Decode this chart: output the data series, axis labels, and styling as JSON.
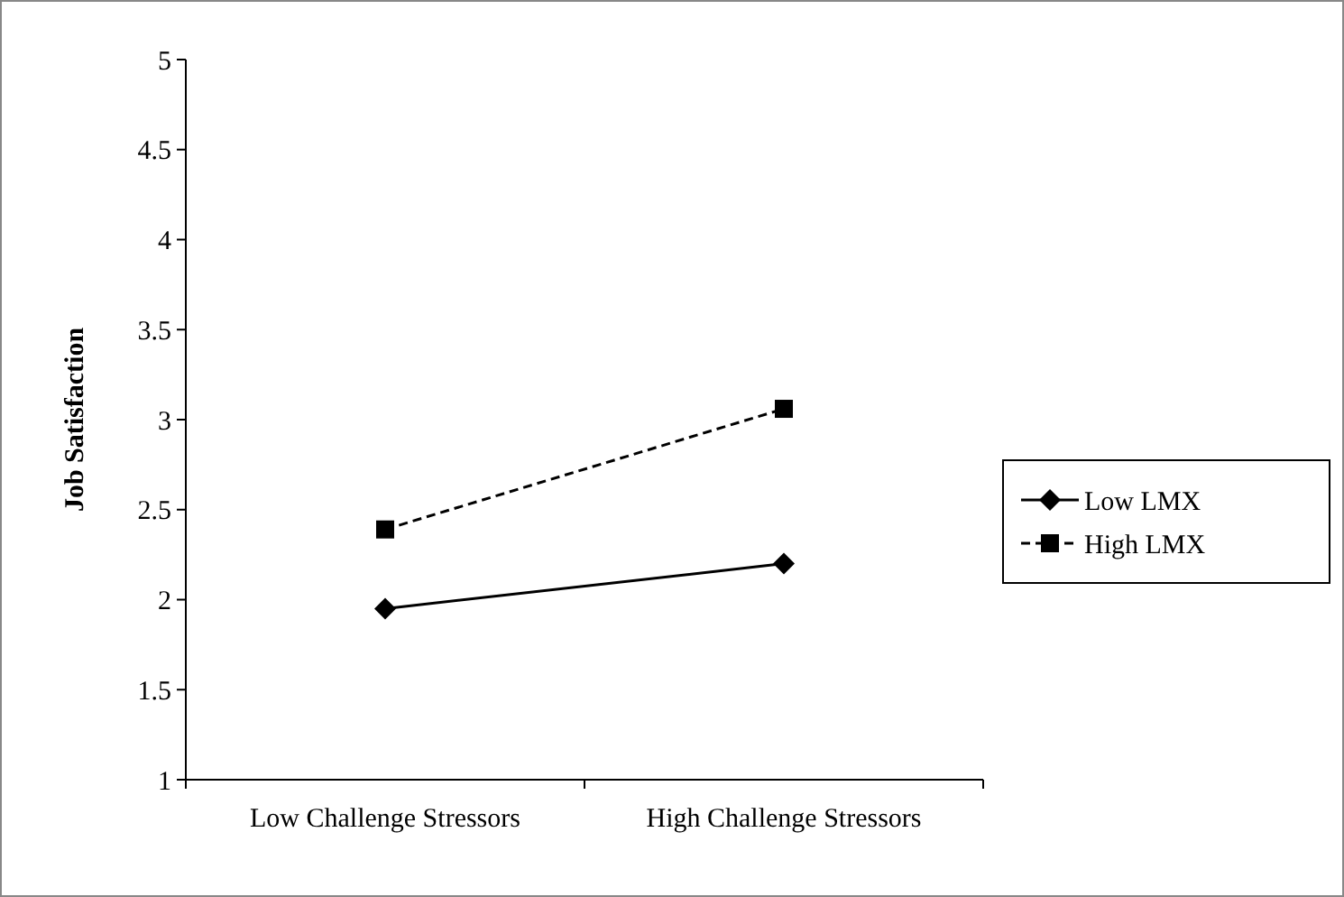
{
  "chart_data": {
    "type": "line",
    "ylabel": "Job Satisfaction",
    "categories": [
      "Low Challenge Stressors",
      "High Challenge Stressors"
    ],
    "series": [
      {
        "name": "Low LMX",
        "color": "#000000",
        "values": [
          1.95,
          2.2
        ],
        "marker": "diamond",
        "line_style": "solid"
      },
      {
        "name": "High LMX",
        "color": "#000000",
        "values": [
          2.39,
          3.06
        ],
        "marker": "square",
        "line_style": "dashed"
      }
    ],
    "ylim": [
      1,
      5
    ],
    "yticks": [
      1,
      1.5,
      2,
      2.5,
      3,
      3.5,
      4,
      4.5,
      5
    ],
    "grid": false,
    "legend": "right"
  }
}
